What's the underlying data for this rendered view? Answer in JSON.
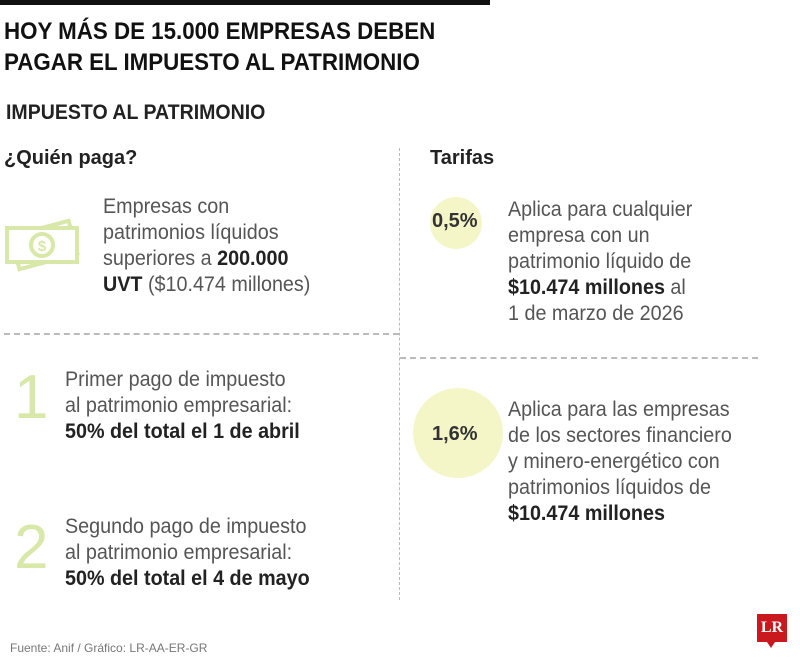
{
  "header": {
    "title_line1": "HOY MÁS DE 15.000 EMPRESAS DEBEN",
    "title_line2": "PAGAR EL IMPUESTO AL PATRIMONIO",
    "subtitle": "IMPUESTO AL PATRIMONIO"
  },
  "who_pays": {
    "heading": "¿Quién paga?",
    "icon": "money-bills-icon",
    "description": {
      "l1": "Empresas con",
      "l2": "patrimonios líquidos",
      "l3a": "superiores a ",
      "l3b": "200.000",
      "l4a": "UVT",
      "l4b": " ($10.474 millones)"
    },
    "payments": [
      {
        "number": "1",
        "l1": "Primer pago de impuesto",
        "l2": "al patrimonio empresarial:",
        "l3": "50% del total el 1 de abril"
      },
      {
        "number": "2",
        "l1": "Segundo pago de impuesto",
        "l2": "al patrimonio empresarial:",
        "l3": "50% del total el 4 de mayo"
      }
    ]
  },
  "rates": {
    "heading": "Tarifas",
    "items": [
      {
        "rate": "0,5%",
        "l1": "Aplica para cualquier",
        "l2": "empresa con un",
        "l3": "patrimonio líquido de",
        "l4a": "$10.474 millones",
        "l4b": " al",
        "l5": "1 de marzo de 2026"
      },
      {
        "rate": "1,6%",
        "l1": "Aplica para las empresas",
        "l2": "de los sectores financiero",
        "l3": "y minero-energético con",
        "l4": "patrimonios líquidos de",
        "l5": "$10.474 millones"
      }
    ]
  },
  "footer": {
    "source": "Fuente: Anif / Gráfico: LR-AA-ER-GR",
    "logo": "LR"
  },
  "colors": {
    "accent_green": "#d8e8a8",
    "circle": "#f5f6c8",
    "logo_red": "#c9191e"
  }
}
